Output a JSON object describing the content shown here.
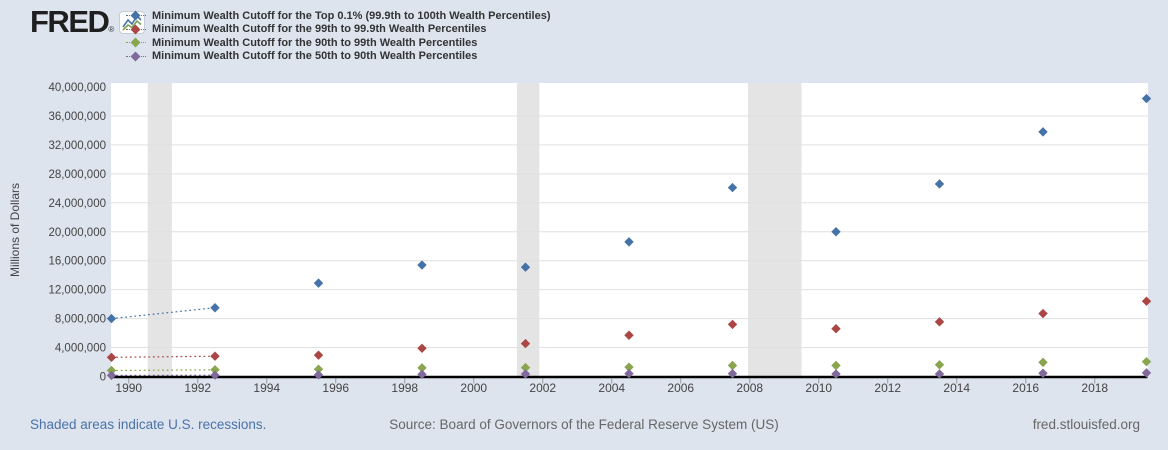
{
  "header": {
    "logo_text": "FRED",
    "logo_reg": "®"
  },
  "footer": {
    "recession_note": "Shaded areas indicate U.S. recessions.",
    "source": "Source: Board of Governors of the Federal Reserve System (US)",
    "site": "fred.stlouisfed.org"
  },
  "colors": {
    "background": "#dde4ee",
    "plot_background": "#ffffff",
    "gridline": "#e0e0e0",
    "recession_band": "#e4e4e4",
    "axis_line": "#000000",
    "axis_tick": "#999999",
    "tick_label": "#444444",
    "legend_text": "#333333",
    "footer_link": "#4a72a8",
    "footer_text": "#666666"
  },
  "chart_data": {
    "type": "scatter",
    "title": "",
    "xlabel": "",
    "ylabel": "Millions of Dollars",
    "ylim": [
      0,
      40000000
    ],
    "ytick_step": 4000000,
    "xticks": [
      1990,
      1992,
      1994,
      1996,
      1998,
      2000,
      2002,
      2004,
      2006,
      2008,
      2010,
      2012,
      2014,
      2016,
      2018
    ],
    "x": [
      1989,
      1992,
      1995,
      1998,
      2001,
      2004,
      2007,
      2010,
      2013,
      2016,
      2019
    ],
    "series": [
      {
        "name": "Minimum Wealth Cutoff for the Top 0.1% (99.9th to 100th Wealth Percentiles)",
        "color": "#4572a7",
        "values": [
          8000000,
          9500000,
          12900000,
          15400000,
          15100000,
          18600000,
          26100000,
          20000000,
          26600000,
          33800000,
          38400000
        ]
      },
      {
        "name": "Minimum Wealth Cutoff for the 99th to 99.9th Wealth Percentiles",
        "color": "#aa4643",
        "values": [
          2650000,
          2800000,
          2950000,
          3900000,
          4550000,
          5700000,
          7200000,
          6600000,
          7550000,
          8700000,
          10400000
        ]
      },
      {
        "name": "Minimum Wealth Cutoff for the 90th to 99th Wealth Percentiles",
        "color": "#89a54e",
        "values": [
          830000,
          930000,
          1010000,
          1200000,
          1230000,
          1290000,
          1520000,
          1520000,
          1620000,
          1950000,
          2050000
        ]
      },
      {
        "name": "Minimum Wealth Cutoff for the 50th to 90th Wealth Percentiles",
        "color": "#80699b",
        "values": [
          150000,
          180000,
          220000,
          300000,
          350000,
          400000,
          400000,
          350000,
          350000,
          450000,
          500000
        ]
      }
    ],
    "recessions": [
      {
        "start": 1990.55,
        "end": 1991.25
      },
      {
        "start": 2001.25,
        "end": 2001.9
      },
      {
        "start": 2007.95,
        "end": 2009.5
      }
    ],
    "marker": "diamond",
    "line_style": "dotted-first-segment-only",
    "legend_position": "top-left",
    "grid": true
  }
}
